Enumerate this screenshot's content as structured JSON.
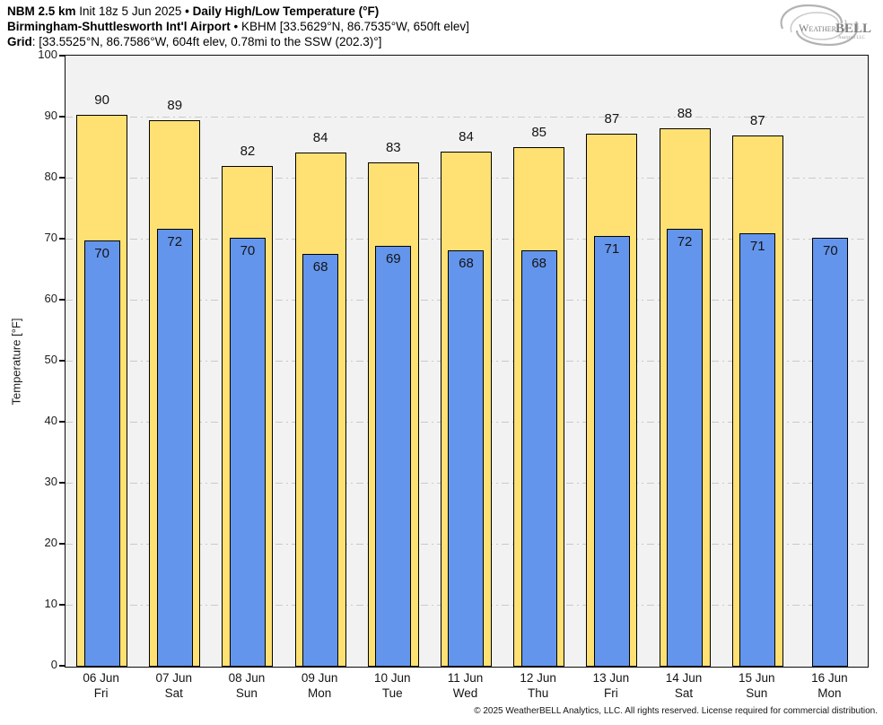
{
  "header": {
    "line1": {
      "model": "NBM 2.5 km",
      "init": " Init 18z 5 Jun 2025 ",
      "sep": "•",
      "product": " Daily High/Low Temperature (°F)"
    },
    "line2": {
      "station": "Birmingham-Shuttlesworth Int'l Airport",
      "sep": "•",
      "details": " KBHM [33.5629°N, 86.7535°W, 650ft elev]"
    },
    "line3": {
      "label": "Grid",
      "details": ": [33.5525°N, 86.7586°W, 604ft elev, 0.78mi to the SSW (202.3)°]"
    }
  },
  "logo": {
    "part1": "Weather",
    "part2": "BELL",
    "sub": "Analytics LLC"
  },
  "footer": {
    "copyright": "© 2025 WeatherBELL Analytics, LLC. All rights reserved. License required for commercial distribution."
  },
  "chart_data": {
    "type": "bar",
    "title": "NBM 2.5 km • Daily High/Low Temperature (°F) — Birmingham-Shuttlesworth Int'l Airport (KBHM)",
    "xlabel": "",
    "ylabel": "Temperature [°F]",
    "ylim": [
      0,
      100
    ],
    "yticks": [
      0,
      10,
      20,
      30,
      40,
      50,
      60,
      70,
      80,
      90,
      100
    ],
    "grid": true,
    "legend": false,
    "categories": [
      {
        "date": "06 Jun",
        "day": "Fri"
      },
      {
        "date": "07 Jun",
        "day": "Sat"
      },
      {
        "date": "08 Jun",
        "day": "Sun"
      },
      {
        "date": "09 Jun",
        "day": "Mon"
      },
      {
        "date": "10 Jun",
        "day": "Tue"
      },
      {
        "date": "11 Jun",
        "day": "Wed"
      },
      {
        "date": "12 Jun",
        "day": "Thu"
      },
      {
        "date": "13 Jun",
        "day": "Fri"
      },
      {
        "date": "14 Jun",
        "day": "Sat"
      },
      {
        "date": "15 Jun",
        "day": "Sun"
      },
      {
        "date": "16 Jun",
        "day": "Mon"
      }
    ],
    "series": [
      {
        "name": "High",
        "color": "#ffe173",
        "values": [
          90,
          89,
          82,
          84,
          83,
          84,
          85,
          87,
          88,
          87,
          null
        ],
        "plotted": [
          90.5,
          89.5,
          82.1,
          84.3,
          82.7,
          84.4,
          85.2,
          87.4,
          88.3,
          87.0,
          null
        ]
      },
      {
        "name": "Low",
        "color": "#6495ed",
        "values": [
          70,
          72,
          70,
          68,
          69,
          68,
          68,
          71,
          72,
          71,
          70
        ],
        "plotted": [
          69.9,
          71.7,
          70.3,
          67.7,
          68.9,
          68.2,
          68.2,
          70.6,
          71.7,
          71.0,
          70.3
        ]
      }
    ]
  }
}
